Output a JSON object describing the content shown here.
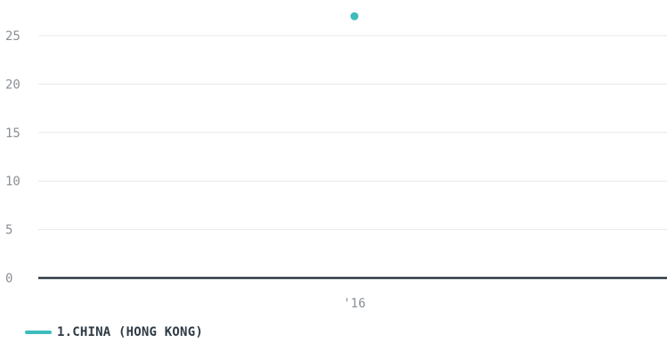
{
  "chart_data": {
    "type": "line",
    "title": "",
    "xlabel": "",
    "ylabel": "",
    "categories": [
      "'16"
    ],
    "ylim": [
      0,
      25
    ],
    "yticks": [
      0,
      5,
      10,
      15,
      20,
      25
    ],
    "grid": true,
    "legend_position": "bottom-left",
    "series": [
      {
        "name": "1.CHINA (HONG KONG)",
        "color": "#3dbcbc",
        "values": [
          27
        ]
      }
    ]
  },
  "colors": {
    "grid": "#e6e8ea",
    "baseline": "#2f3b45",
    "tick_text": "#8a8f94",
    "legend_text": "#2f3b45"
  }
}
